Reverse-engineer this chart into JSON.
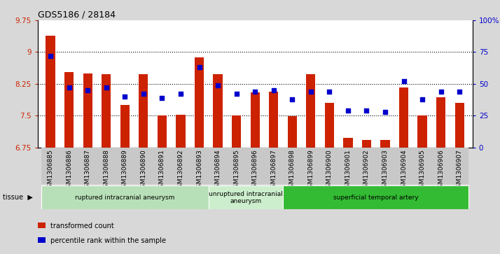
{
  "title": "GDS5186 / 28184",
  "samples": [
    "GSM1306885",
    "GSM1306886",
    "GSM1306887",
    "GSM1306888",
    "GSM1306889",
    "GSM1306890",
    "GSM1306891",
    "GSM1306892",
    "GSM1306893",
    "GSM1306894",
    "GSM1306895",
    "GSM1306896",
    "GSM1306897",
    "GSM1306898",
    "GSM1306899",
    "GSM1306900",
    "GSM1306901",
    "GSM1306902",
    "GSM1306903",
    "GSM1306904",
    "GSM1306905",
    "GSM1306906",
    "GSM1306907"
  ],
  "bar_values": [
    9.38,
    8.52,
    8.5,
    8.47,
    7.75,
    8.47,
    7.5,
    7.52,
    8.87,
    8.47,
    7.5,
    8.05,
    8.07,
    7.48,
    8.47,
    7.8,
    6.97,
    6.93,
    6.93,
    8.17,
    7.5,
    7.93,
    7.8
  ],
  "dot_values": [
    72,
    47,
    45,
    47,
    40,
    42,
    39,
    42,
    63,
    49,
    42,
    44,
    45,
    38,
    44,
    44,
    29,
    29,
    28,
    52,
    38,
    44,
    44
  ],
  "ylim_left": [
    6.75,
    9.75
  ],
  "ylim_right": [
    0,
    100
  ],
  "yticks_left": [
    6.75,
    7.5,
    8.25,
    9.0,
    9.75
  ],
  "ytick_labels_left": [
    "6.75",
    "7.5",
    "8.25",
    "9",
    "9.75"
  ],
  "yticks_right": [
    0,
    25,
    50,
    75,
    100
  ],
  "ytick_labels_right": [
    "0",
    "25",
    "50",
    "75",
    "100%"
  ],
  "hlines": [
    7.5,
    8.25,
    9.0
  ],
  "bar_color": "#cc2200",
  "dot_color": "#0000cc",
  "bg_color": "#d8d8d8",
  "plot_bg": "#ffffff",
  "tissue_groups": [
    {
      "label": "ruptured intracranial aneurysm",
      "start": 0,
      "end": 9,
      "color": "#b8e0b8"
    },
    {
      "label": "unruptured intracranial\naneurysm",
      "start": 9,
      "end": 13,
      "color": "#cceecc"
    },
    {
      "label": "superficial temporal artery",
      "start": 13,
      "end": 23,
      "color": "#33bb33"
    }
  ],
  "legend_bar_label": "transformed count",
  "legend_dot_label": "percentile rank within the sample",
  "xlabel_fontsize": 6.5,
  "title_fontsize": 9,
  "tick_fontsize": 7.5,
  "bar_width": 0.5
}
